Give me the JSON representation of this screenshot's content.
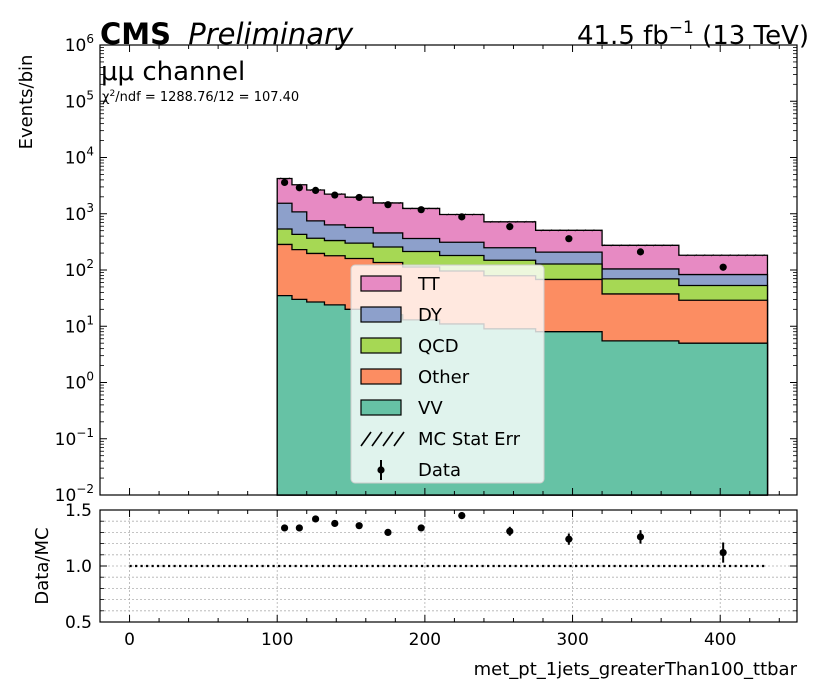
{
  "header": {
    "cms": "CMS",
    "preliminary": "Preliminary",
    "lumi": "41.5 fb",
    "lumi_sup": "−1",
    "energy": " (13 TeV)",
    "channel": "μμ channel",
    "chi2_prefix": "χ",
    "chi2_sup": "2",
    "chi2_rest": "/ndf = 1288.76/12 = 107.40"
  },
  "colors": {
    "TT": "#e78ac3",
    "DY": "#8da0cb",
    "QCD": "#a6d854",
    "Other": "#fc8d62",
    "VV": "#66c2a5",
    "data": "#000000"
  },
  "chart_data": [
    {
      "type": "area",
      "panel": "main",
      "style": "stacked step histogram with data points",
      "ylabel": "Events/bin",
      "yscale": "log",
      "ylim": [
        0.01,
        1000000
      ],
      "xlim": [
        -20,
        452
      ],
      "yticks": [
        {
          "base": "10",
          "exp": "−2"
        },
        {
          "base": "10",
          "exp": "−1"
        },
        {
          "base": "10",
          "exp": "0"
        },
        {
          "base": "10",
          "exp": "1"
        },
        {
          "base": "10",
          "exp": "2"
        },
        {
          "base": "10",
          "exp": "3"
        },
        {
          "base": "10",
          "exp": "4"
        },
        {
          "base": "10",
          "exp": "5"
        },
        {
          "base": "10",
          "exp": "6"
        }
      ],
      "bin_edges": [
        100,
        110,
        120,
        132,
        146,
        165,
        185,
        210,
        240,
        275,
        320,
        372,
        432
      ],
      "stack_order": [
        "VV",
        "Other",
        "QCD",
        "DY",
        "TT"
      ],
      "series": [
        {
          "name": "VV",
          "values": [
            35,
            30,
            27,
            24,
            20,
            16,
            13,
            11,
            9,
            8,
            5.5,
            5
          ]
        },
        {
          "name": "Other",
          "values": [
            250,
            200,
            170,
            155,
            140,
            120,
            100,
            85,
            70,
            60,
            32,
            24
          ]
        },
        {
          "name": "QCD",
          "values": [
            250,
            200,
            170,
            155,
            140,
            120,
            100,
            85,
            70,
            60,
            32,
            24
          ]
        },
        {
          "name": "DY",
          "values": [
            1000,
            650,
            380,
            300,
            270,
            200,
            150,
            130,
            100,
            80,
            35,
            30
          ]
        },
        {
          "name": "TT",
          "values": [
            2700,
            2200,
            1900,
            1600,
            1400,
            1100,
            880,
            660,
            470,
            300,
            170,
            100
          ]
        }
      ],
      "data_points": {
        "name": "Data",
        "x": [
          105,
          115,
          126,
          139,
          155.5,
          175,
          197.5,
          225,
          257.5,
          297.5,
          346,
          402
        ],
        "y": [
          3600,
          2900,
          2600,
          2150,
          1950,
          1450,
          1180,
          880,
          590,
          360,
          210,
          112
        ]
      },
      "legend": {
        "placement": "center-bottom",
        "entries": [
          {
            "label": "TT",
            "kind": "fill",
            "color": "#e78ac3"
          },
          {
            "label": "DY",
            "kind": "fill",
            "color": "#8da0cb"
          },
          {
            "label": "QCD",
            "kind": "fill",
            "color": "#a6d854"
          },
          {
            "label": "Other",
            "kind": "fill",
            "color": "#fc8d62"
          },
          {
            "label": "VV",
            "kind": "fill",
            "color": "#66c2a5"
          },
          {
            "label": "MC Stat Err",
            "kind": "hatch",
            "color": "#000000"
          },
          {
            "label": "Data",
            "kind": "point",
            "color": "#000000"
          }
        ]
      }
    },
    {
      "type": "scatter",
      "panel": "ratio",
      "ylabel": "Data/MC",
      "xlabel": "met_pt_1jets_greaterThan100_ttbar",
      "ylim": [
        0.5,
        1.5
      ],
      "xlim": [
        -20,
        452
      ],
      "yticks": [
        "0.5",
        "1.0",
        "1.5"
      ],
      "xticks": [
        "0",
        "100",
        "200",
        "300",
        "400"
      ],
      "grid": true,
      "reference_line": 1.0,
      "x": [
        105,
        115,
        126,
        139,
        155.5,
        175,
        197.5,
        225,
        257.5,
        297.5,
        346,
        402
      ],
      "values": [
        1.34,
        1.34,
        1.42,
        1.38,
        1.36,
        1.3,
        1.34,
        1.45,
        1.31,
        1.24,
        1.26,
        1.12
      ],
      "errors": [
        0.02,
        0.02,
        0.02,
        0.02,
        0.02,
        0.02,
        0.025,
        0.03,
        0.04,
        0.05,
        0.06,
        0.09
      ]
    }
  ]
}
